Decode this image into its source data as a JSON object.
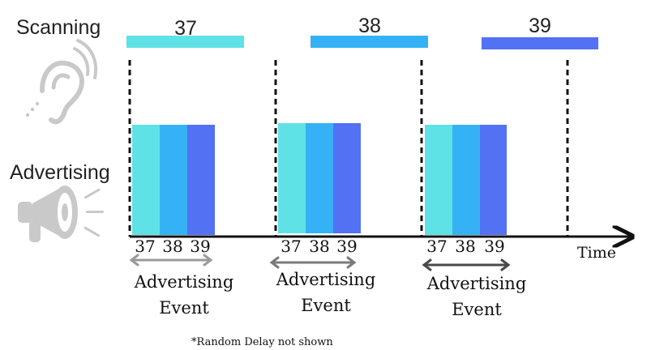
{
  "labels": {
    "scanning": "Scanning",
    "advertising": "Advertising",
    "time": "Time",
    "footnote": "*Random Delay not shown"
  },
  "scan_windows": [
    {
      "channel": "37",
      "color": "#5fe2e6"
    },
    {
      "channel": "38",
      "color": "#35b2f5"
    },
    {
      "channel": "39",
      "color": "#5371f3"
    }
  ],
  "advertising_events": [
    {
      "channels": [
        {
          "label": "37",
          "color": "#5fe2e6"
        },
        {
          "label": "38",
          "color": "#35b2f5"
        },
        {
          "label": "39",
          "color": "#5371f3"
        }
      ],
      "label_line1": "Advertising",
      "label_line2": "Event",
      "arrow_color": "#9a9a9a"
    },
    {
      "channels": [
        {
          "label": "37",
          "color": "#5fe2e6"
        },
        {
          "label": "38",
          "color": "#35b2f5"
        },
        {
          "label": "39",
          "color": "#5371f3"
        }
      ],
      "label_line1": "Advertising",
      "label_line2": "Event",
      "arrow_color": "#7a7a7a"
    },
    {
      "channels": [
        {
          "label": "37",
          "color": "#5fe2e6"
        },
        {
          "label": "38",
          "color": "#35b2f5"
        },
        {
          "label": "39",
          "color": "#5371f3"
        }
      ],
      "label_line1": "Advertising",
      "label_line2": "Event",
      "arrow_color": "#4a4a4a"
    }
  ],
  "icons": {
    "scanning": "listening-ear-icon",
    "advertising": "megaphone-icon"
  },
  "colors": {
    "axis": "#111111",
    "icon": "#c9c9c9"
  }
}
